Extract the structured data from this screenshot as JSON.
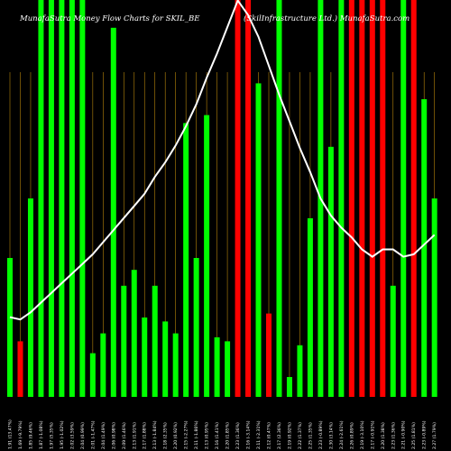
{
  "chart_data": {
    "type": "bar",
    "title_left": "MunafaSutra Money Flow  Charts for SKIL_BE",
    "title_right": "(SkilInfrastructure   Ltd.) MunafaSutra.com",
    "colors": {
      "background": "#000000",
      "up": "#00ff00",
      "down": "#ff0000",
      "line": "#ffffff",
      "grid": "#b8860b",
      "text": "#ffffff"
    },
    "ylim": [
      0,
      100
    ],
    "categories": [
      "1.91 (13.47%)",
      "1.69 (-9.79%)",
      "1.85 (9.46%)",
      "1.87 (-1.08%)",
      "1.97 (5.35%)",
      "1.95 (-1.02%)",
      "2.02 (3.59%)",
      "2.04 (0.99%)",
      "2.01 (-1.47%)",
      "2.04 (1.49%)",
      "2.06 (0.98%)",
      "2.09 (1.46%)",
      "2.13 (1.91%)",
      "2.17 (1.88%)",
      "2.13 (-1.84%)",
      "2.18 (2.35%)",
      "2.20 (0.92%)",
      "2.15 (-2.27%)",
      "2.11 (-1.86%)",
      "2.13 (0.95%)",
      "2.16 (1.41%)",
      "2.20 (1.85%)",
      "2.23 (1.36%)",
      "2.16 (-3.14%)",
      "2.11 (-2.31%)",
      "2.12 (0.47%)",
      "2.17 (2.36%)",
      "2.19 (0.92%)",
      "2.22 (1.37%)",
      "2.25 (1.35%)",
      "2.23 (-0.89%)",
      "2.30 (3.14%)",
      "2.24 (-2.61%)",
      "2.26 (0.89%)",
      "2.19 (-3.10%)",
      "2.17 (-0.91%)",
      "2.20 (1.38%)",
      "2.23 (1.36%)",
      "2.21 (-0.90%)",
      "2.25 (1.81%)",
      "2.23 (-0.89%)",
      "2.27 (1.79%)"
    ],
    "values": [
      35,
      14,
      50,
      100,
      100,
      100,
      100,
      100,
      11,
      16,
      93,
      28,
      32,
      20,
      28,
      19,
      16,
      69,
      35,
      71,
      15,
      14,
      100,
      100,
      79,
      21,
      100,
      5,
      13,
      45,
      100,
      63,
      100,
      100,
      100,
      100,
      100,
      28,
      100,
      100,
      75,
      50
    ],
    "directions": [
      "up",
      "down",
      "up",
      "up",
      "up",
      "up",
      "up",
      "up",
      "up",
      "up",
      "up",
      "up",
      "up",
      "up",
      "up",
      "up",
      "up",
      "up",
      "up",
      "up",
      "up",
      "up",
      "down",
      "down",
      "up",
      "down",
      "up",
      "up",
      "up",
      "up",
      "up",
      "up",
      "up",
      "down",
      "down",
      "down",
      "down",
      "up",
      "up",
      "down",
      "up",
      "up"
    ],
    "line_values": [
      33,
      32,
      35,
      39,
      43,
      47,
      51,
      55,
      59,
      64,
      69,
      74,
      79,
      84,
      91,
      97,
      104,
      112,
      121,
      132,
      142,
      153,
      164,
      158,
      149,
      137,
      125,
      114,
      103,
      93,
      82,
      75,
      70,
      66,
      61,
      58,
      61,
      61,
      58,
      59,
      63,
      67
    ]
  }
}
